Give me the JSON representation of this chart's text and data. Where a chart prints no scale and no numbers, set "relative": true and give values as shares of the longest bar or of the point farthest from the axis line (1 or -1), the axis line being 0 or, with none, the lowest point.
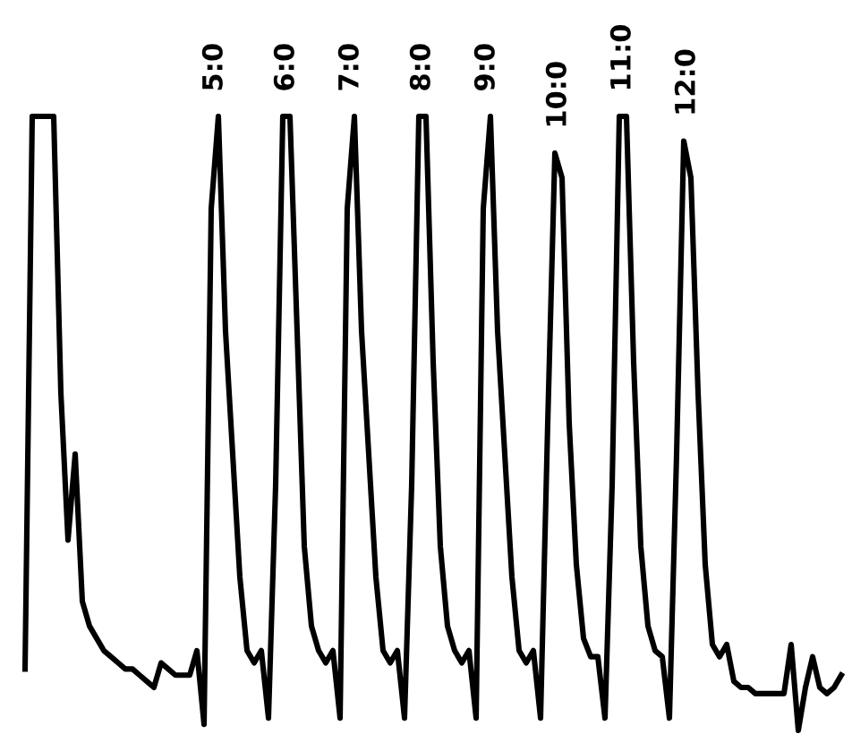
{
  "chart_data": {
    "type": "line",
    "relative": true,
    "color": "#000000",
    "categories": [
      null,
      null,
      null,
      null,
      null,
      null,
      null,
      null,
      null,
      null,
      null,
      null,
      null,
      null,
      null,
      null,
      null,
      null,
      null,
      null,
      null,
      null,
      null,
      null,
      null,
      null,
      null,
      null,
      null,
      null,
      null,
      null,
      null,
      null,
      null,
      null,
      null,
      null,
      null,
      null,
      null,
      null,
      null,
      null,
      null,
      null,
      null,
      null,
      null,
      null,
      null,
      null,
      null,
      null,
      null,
      null,
      null,
      null,
      null,
      null,
      null,
      null,
      null,
      null,
      null,
      null,
      null,
      null,
      null,
      null,
      null,
      null,
      null,
      null,
      null,
      null,
      null,
      null,
      null,
      null,
      null,
      null,
      null,
      null,
      null,
      null,
      null,
      null,
      null,
      null,
      null,
      null,
      null,
      null,
      null,
      null,
      null,
      null,
      null,
      null,
      null,
      null,
      null,
      null,
      null,
      null,
      null,
      null,
      null,
      null,
      null,
      null,
      null,
      null,
      null
    ],
    "values": [
      0.1,
      1,
      1,
      1,
      1,
      0.55,
      0.31,
      0.45,
      0.21,
      0.17,
      0.15,
      0.13,
      0.12,
      0.11,
      0.1,
      0.1,
      0.09,
      0.08,
      0.07,
      0.11,
      0.1,
      0.09,
      0.09,
      0.09,
      0.13,
      0.01,
      0.85,
      1,
      0.65,
      0.45,
      0.25,
      0.13,
      0.11,
      0.13,
      0.02,
      0.4,
      1,
      1,
      0.65,
      0.3,
      0.17,
      0.13,
      0.11,
      0.13,
      0.02,
      0.85,
      1,
      0.65,
      0.45,
      0.25,
      0.13,
      0.11,
      0.13,
      0.02,
      0.4,
      1,
      1,
      0.6,
      0.3,
      0.17,
      0.13,
      0.11,
      0.13,
      0.02,
      0.85,
      1,
      0.65,
      0.45,
      0.25,
      0.13,
      0.11,
      0.13,
      0.02,
      0.5,
      0.94,
      0.9,
      0.5,
      0.27,
      0.15,
      0.12,
      0.12,
      0.02,
      0.4,
      1,
      1,
      0.6,
      0.3,
      0.17,
      0.13,
      0.12,
      0.02,
      0.45,
      0.96,
      0.9,
      0.55,
      0.27,
      0.14,
      0.12,
      0.14,
      0.08,
      0.07,
      0.07,
      0.06,
      0.06,
      0.06,
      0.06,
      0.06,
      0.14,
      0,
      0.07,
      0.12,
      0.07,
      0.06,
      0.07,
      0.09
    ],
    "annotations": [
      "5:0",
      "6:0",
      "7:0",
      "8:0",
      "9:0",
      "10:0",
      "11:0",
      "12:0"
    ],
    "legend": false,
    "marker": "none",
    "line_style": "solid"
  }
}
